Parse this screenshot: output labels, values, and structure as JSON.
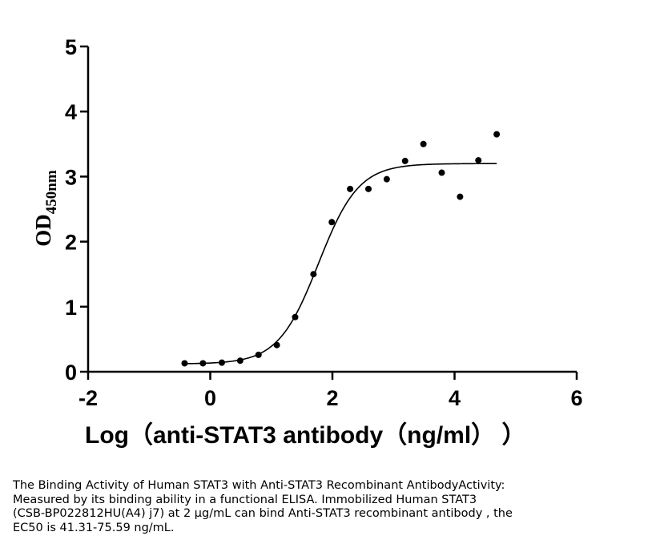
{
  "chart_data": {
    "type": "scatter",
    "xlabel": "Log（anti-STAT3 antibody（ng/ml）  ）",
    "ylabel_main": "OD",
    "ylabel_sub": "450nm",
    "xlim": [
      -2,
      6
    ],
    "ylim": [
      0,
      5
    ],
    "xticks": [
      -2,
      0,
      2,
      4,
      6
    ],
    "yticks": [
      0,
      1,
      2,
      3,
      4,
      5
    ],
    "xtick_labels": [
      "-2",
      "0",
      "2",
      "4",
      "6"
    ],
    "ytick_labels": [
      "0",
      "1",
      "2",
      "3",
      "4",
      "5"
    ],
    "grid": false,
    "points": [
      {
        "x": -0.42,
        "y": 0.13
      },
      {
        "x": -0.12,
        "y": 0.13
      },
      {
        "x": 0.19,
        "y": 0.14
      },
      {
        "x": 0.49,
        "y": 0.17
      },
      {
        "x": 0.79,
        "y": 0.26
      },
      {
        "x": 1.09,
        "y": 0.41
      },
      {
        "x": 1.39,
        "y": 0.84
      },
      {
        "x": 1.69,
        "y": 1.5
      },
      {
        "x": 1.99,
        "y": 2.3
      },
      {
        "x": 2.29,
        "y": 2.81
      },
      {
        "x": 2.59,
        "y": 2.81
      },
      {
        "x": 2.89,
        "y": 2.96
      },
      {
        "x": 3.19,
        "y": 3.24
      },
      {
        "x": 3.49,
        "y": 3.5
      },
      {
        "x": 3.79,
        "y": 3.06
      },
      {
        "x": 4.09,
        "y": 2.69
      },
      {
        "x": 4.39,
        "y": 3.25
      },
      {
        "x": 4.69,
        "y": 3.65
      }
    ],
    "fit": {
      "model": "4PL",
      "bottom": 0.12,
      "top": 3.2,
      "log_ec50": 1.77,
      "hill_slope": 1.32,
      "x_range": [
        -0.42,
        4.69
      ]
    }
  },
  "caption": [
    "The Binding Activity of Human STAT3 with Anti-STAT3 Recombinant AntibodyActivity:",
    "Measured by its binding ability in a functional ELISA. Immobilized Human STAT3",
    "(CSB-BP022812HU(A4) j7) at 2 μg/mL can bind Anti-STAT3 recombinant antibody , the",
    "EC50 is 41.31-75.59 ng/mL."
  ]
}
